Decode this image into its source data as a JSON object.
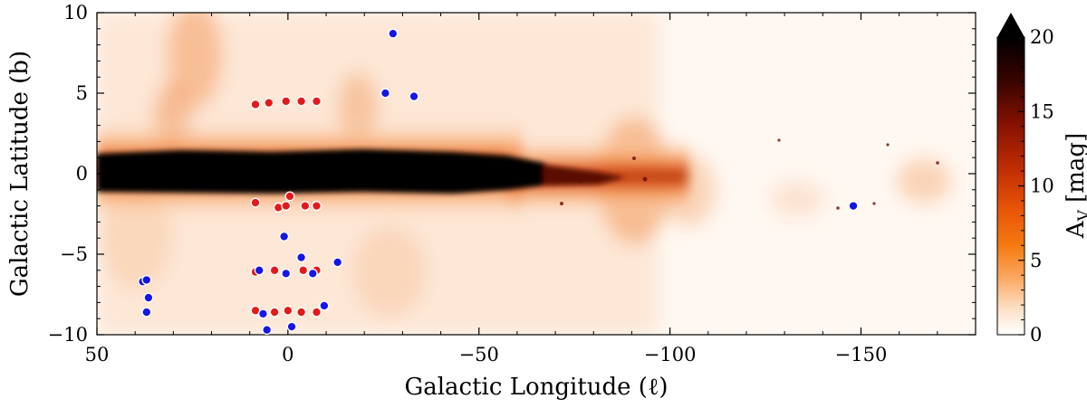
{
  "chart_data": {
    "type": "heatmap",
    "title": "",
    "xlabel": "Galactic Longitude (ℓ)",
    "ylabel": "Galactic Latitude (b)",
    "xlim": [
      50,
      -180
    ],
    "ylim": [
      -10,
      10
    ],
    "x_ticks": [
      50,
      0,
      -50,
      -100,
      -150
    ],
    "x_tick_labels": [
      "50",
      "0",
      "−50",
      "−100",
      "−150"
    ],
    "y_ticks": [
      -10,
      -5,
      0,
      5,
      10
    ],
    "y_tick_labels": [
      "−10",
      "−5",
      "0",
      "5",
      "10"
    ],
    "colorbar": {
      "label": "A_V [mag]",
      "label_main": "A",
      "label_sub": "V",
      "label_unit": " [mag]",
      "range": [
        0,
        20
      ],
      "ticks": [
        0,
        5,
        10,
        15,
        20
      ],
      "tick_labels": [
        "0",
        "5",
        "10",
        "15",
        "20"
      ],
      "extend": "max",
      "colormap": [
        "#ffffff",
        "#fde3cc",
        "#fba45a",
        "#f57a10",
        "#e85508",
        "#c22f03",
        "#8a1202",
        "#3a0400",
        "#000000"
      ]
    },
    "grid": false,
    "series": [
      {
        "marker_color": "#e31a1c",
        "points": [
          [
            8.5,
            4.3
          ],
          [
            5,
            4.4
          ],
          [
            0.5,
            4.5
          ],
          [
            -3.5,
            4.5
          ],
          [
            -7.5,
            4.5
          ],
          [
            8.5,
            -1.8
          ],
          [
            -0.5,
            -1.4
          ],
          [
            2.5,
            -2.1
          ],
          [
            0.5,
            -2.0
          ],
          [
            -4.5,
            -2.0
          ],
          [
            -7.5,
            -2.0
          ],
          [
            8.5,
            -6.1
          ],
          [
            3.5,
            -6.0
          ],
          [
            -4,
            -6.0
          ],
          [
            -7.5,
            -6.0
          ],
          [
            8.5,
            -8.5
          ],
          [
            3.5,
            -8.6
          ],
          [
            0,
            -8.5
          ],
          [
            -3.5,
            -8.6
          ],
          [
            -7.5,
            -8.6
          ]
        ]
      },
      {
        "marker_color": "#1515e6",
        "points": [
          [
            -27.5,
            8.7
          ],
          [
            -25.5,
            5.0
          ],
          [
            -33,
            4.8
          ],
          [
            -148,
            -2.0
          ],
          [
            1,
            -3.9
          ],
          [
            -3.5,
            -5.2
          ],
          [
            -13,
            -5.5
          ],
          [
            -6.5,
            -6.2
          ],
          [
            0.5,
            -6.2
          ],
          [
            7.5,
            -6.0
          ],
          [
            -9.5,
            -8.2
          ],
          [
            6.5,
            -8.7
          ],
          [
            -1,
            -9.5
          ],
          [
            5.5,
            -9.7
          ],
          [
            38,
            -6.7
          ],
          [
            37,
            -6.6
          ],
          [
            36.5,
            -7.7
          ],
          [
            37,
            -8.6
          ]
        ]
      }
    ]
  }
}
